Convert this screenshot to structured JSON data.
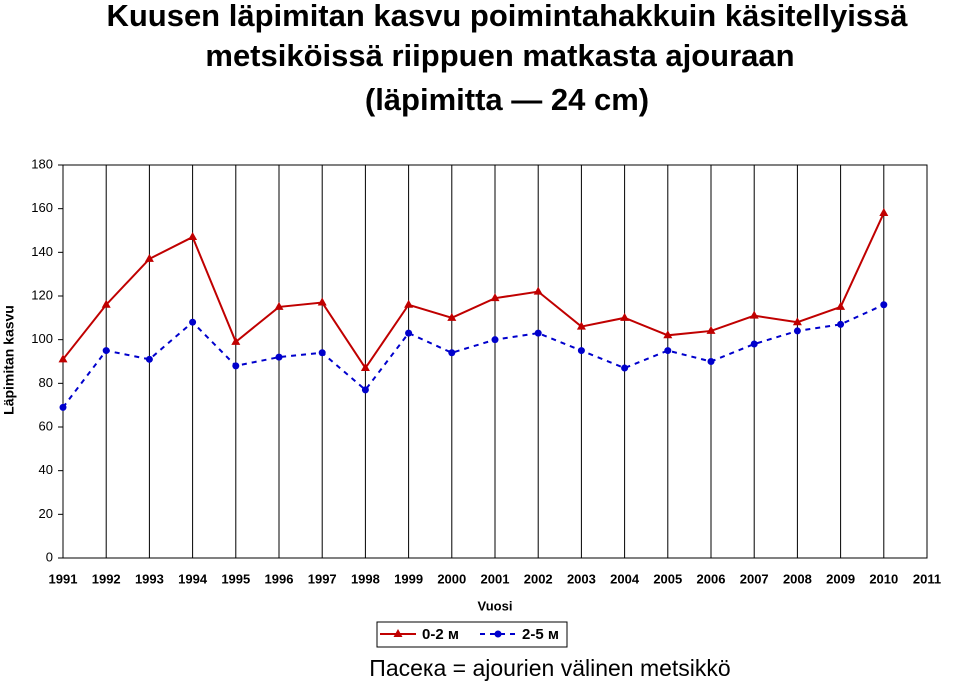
{
  "chart_data": {
    "type": "line",
    "title": [
      "Kuusen läpimitan kasvu poimintahakkuin käsitellyissä",
      "metsiköissä riippuen matkasta ajouraan",
      "(läpimitta — 24 cm)"
    ],
    "ylabel": "Läpimitan kasvu",
    "xlabel": "Vuosi",
    "note": "Пасека = ajourien välinen metsikkö",
    "x": [
      1991,
      1992,
      1993,
      1994,
      1995,
      1996,
      1997,
      1998,
      1999,
      2000,
      2001,
      2002,
      2003,
      2004,
      2005,
      2006,
      2007,
      2008,
      2009,
      2010
    ],
    "series": [
      {
        "name": "0-2 м",
        "color": "#c00000",
        "marker": "triangle",
        "dash": false,
        "values": [
          91,
          116,
          137,
          147,
          99,
          115,
          117,
          87,
          116,
          110,
          119,
          122,
          106,
          110,
          102,
          104,
          111,
          108,
          115,
          158
        ]
      },
      {
        "name": "2-5 м",
        "color": "#0000cc",
        "marker": "circle",
        "dash": true,
        "values": [
          69,
          95,
          91,
          108,
          88,
          92,
          94,
          77,
          103,
          94,
          100,
          103,
          95,
          87,
          95,
          90,
          98,
          104,
          107,
          116
        ]
      }
    ],
    "xlim": [
      1991,
      2011
    ],
    "xticks": [
      1991,
      1992,
      1993,
      1994,
      1995,
      1996,
      1997,
      1998,
      1999,
      2000,
      2001,
      2002,
      2003,
      2004,
      2005,
      2006,
      2007,
      2008,
      2009,
      2010,
      2011
    ],
    "ylim": [
      0,
      180
    ],
    "yticks": [
      0,
      20,
      40,
      60,
      80,
      100,
      120,
      140,
      160,
      180
    ],
    "grid": "x"
  }
}
